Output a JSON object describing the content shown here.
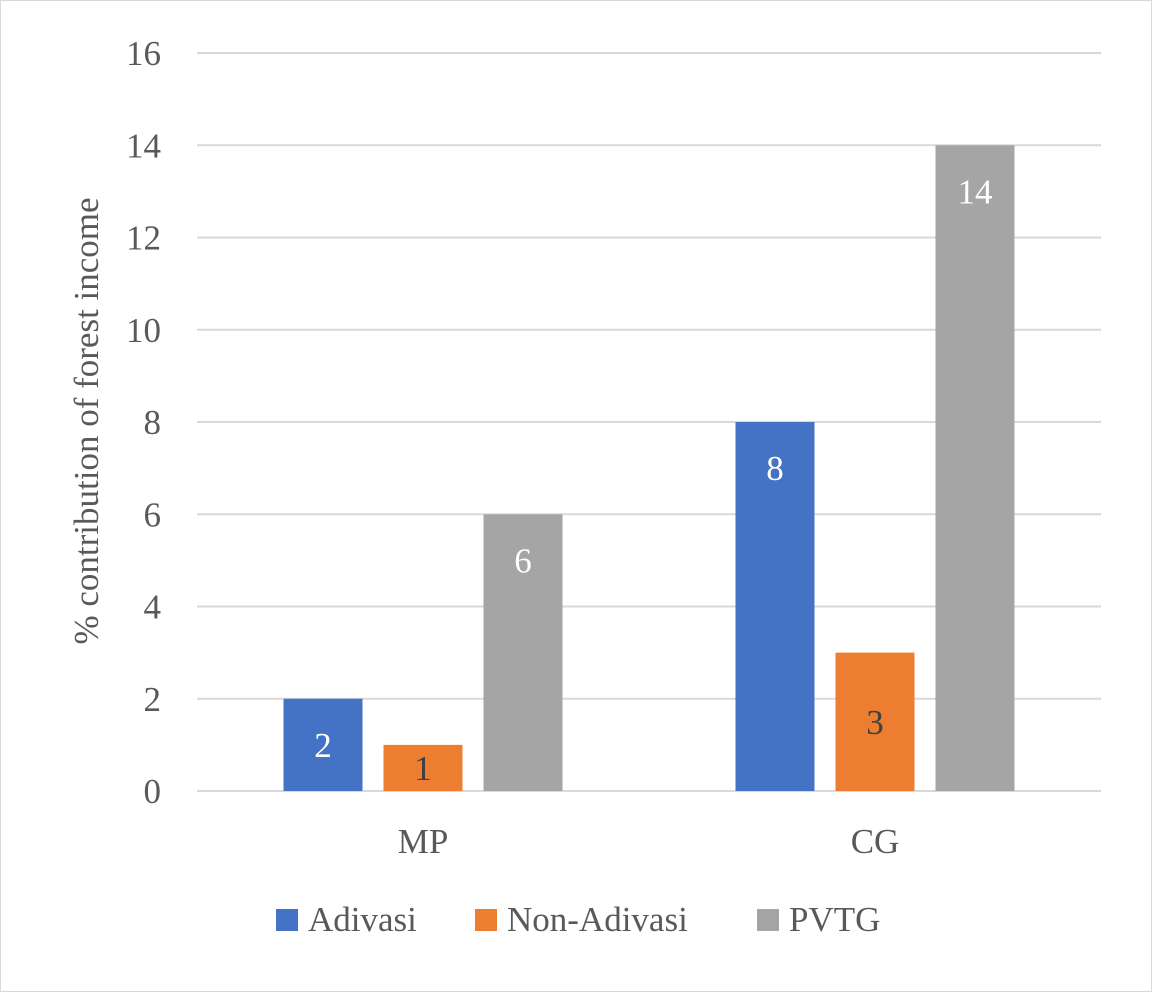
{
  "chart_data": {
    "type": "bar",
    "title": "",
    "xlabel": "",
    "ylabel": "% contribution of forest income",
    "categories": [
      "MP",
      "CG"
    ],
    "series": [
      {
        "name": "Adivasi",
        "color": "#4472C4",
        "values": [
          2,
          8
        ]
      },
      {
        "name": "Non-Adivasi",
        "color": "#ED7D31",
        "values": [
          1,
          3
        ]
      },
      {
        "name": "PVTG",
        "color": "#A5A5A5",
        "values": [
          6,
          14
        ]
      }
    ],
    "ylim": [
      0,
      16
    ],
    "yticks": [
      0,
      2,
      4,
      6,
      8,
      10,
      12,
      14,
      16
    ],
    "grid": true,
    "legend_position": "bottom",
    "data_label_colors": {
      "Adivasi": "#ffffff",
      "Non-Adivasi": "#404040",
      "PVTG": "#ffffff"
    }
  }
}
